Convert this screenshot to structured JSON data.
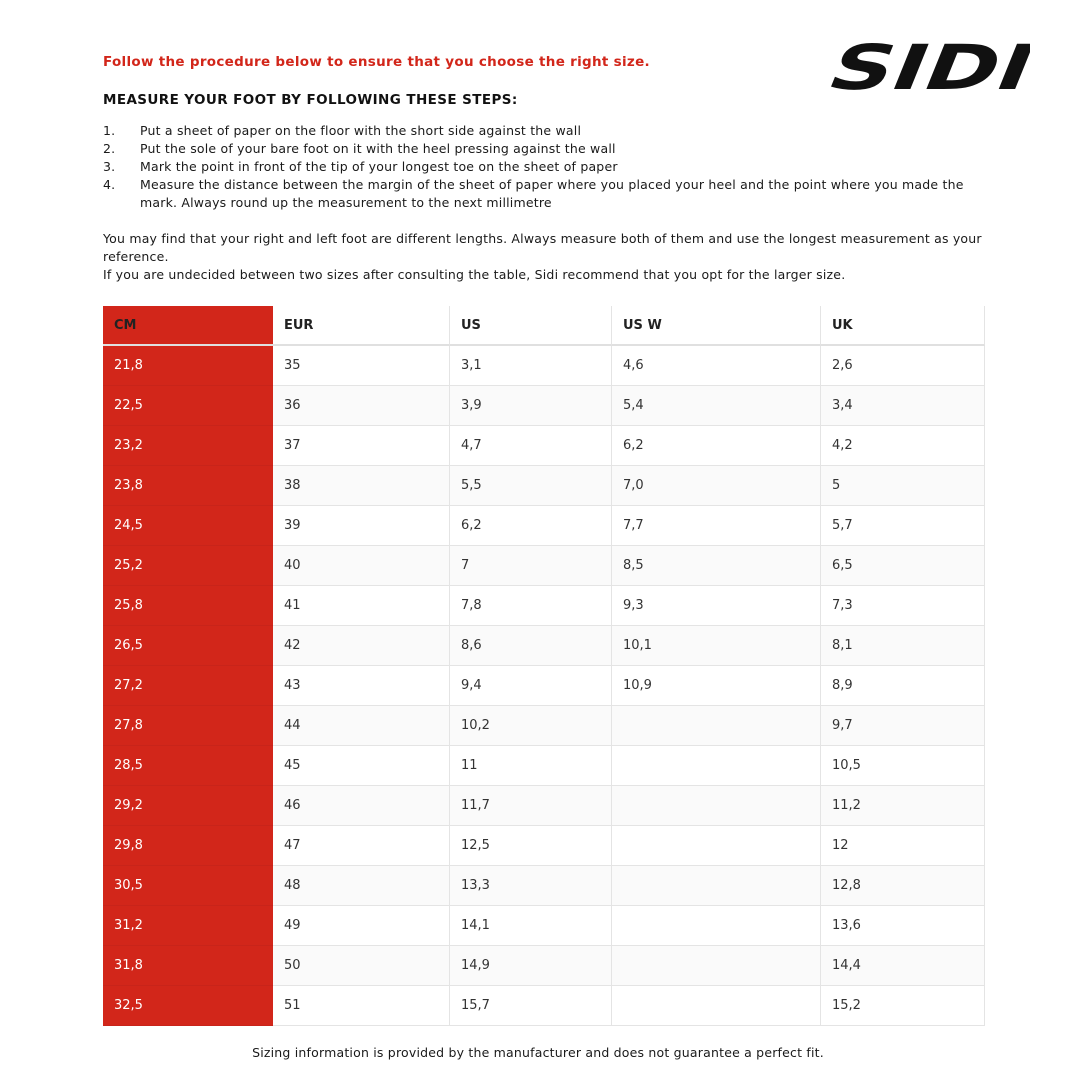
{
  "header": {
    "intro": "Follow the procedure below to ensure that you choose the right size.",
    "logo": "SIDI",
    "heading": "MEASURE YOUR FOOT BY FOLLOWING THESE STEPS:"
  },
  "steps": [
    {
      "number": "1.",
      "text": "Put a sheet of paper on the floor with the short side against the wall"
    },
    {
      "number": "2.",
      "text": "Put the sole of your bare foot on it with the heel pressing against the wall"
    },
    {
      "number": "3.",
      "text": "Mark the point in front of the tip of your longest toe on the sheet of paper"
    },
    {
      "number": "4.",
      "text": "Measure the distance between the margin of the sheet of paper where you placed your heel and the point where you made the mark. Always round up the measurement to the next millimetre"
    }
  ],
  "notes": [
    "You may find that your right and left foot are different lengths. Always measure both of them and use the longest measurement as your reference.",
    "If you are undecided between two sizes after consulting the table, Sidi recommend that you opt for the larger size."
  ],
  "table": {
    "columns": [
      "CM",
      "EUR",
      "US",
      "US W",
      "UK"
    ],
    "rows": [
      [
        "21,8",
        "35",
        "3,1",
        "4,6",
        "2,6"
      ],
      [
        "22,5",
        "36",
        "3,9",
        "5,4",
        "3,4"
      ],
      [
        "23,2",
        "37",
        "4,7",
        "6,2",
        "4,2"
      ],
      [
        "23,8",
        "38",
        "5,5",
        "7,0",
        "5"
      ],
      [
        "24,5",
        "39",
        "6,2",
        "7,7",
        "5,7"
      ],
      [
        "25,2",
        "40",
        "7",
        "8,5",
        "6,5"
      ],
      [
        "25,8",
        "41",
        "7,8",
        "9,3",
        "7,3"
      ],
      [
        "26,5",
        "42",
        "8,6",
        "10,1",
        "8,1"
      ],
      [
        "27,2",
        "43",
        "9,4",
        "10,9",
        "8,9"
      ],
      [
        "27,8",
        "44",
        "10,2",
        null,
        "9,7"
      ],
      [
        "28,5",
        "45",
        "11",
        null,
        "10,5"
      ],
      [
        "29,2",
        "46",
        "11,7",
        null,
        "11,2"
      ],
      [
        "29,8",
        "47",
        "12,5",
        null,
        "12"
      ],
      [
        "30,5",
        "48",
        "13,3",
        null,
        "12,8"
      ],
      [
        "31,2",
        "49",
        "14,1",
        null,
        "13,6"
      ],
      [
        "31,8",
        "50",
        "14,9",
        null,
        "14,4"
      ],
      [
        "32,5",
        "51",
        "15,7",
        null,
        "15,2"
      ]
    ]
  },
  "footer": "Sizing information is provided by the manufacturer and does not guarantee a perfect fit."
}
